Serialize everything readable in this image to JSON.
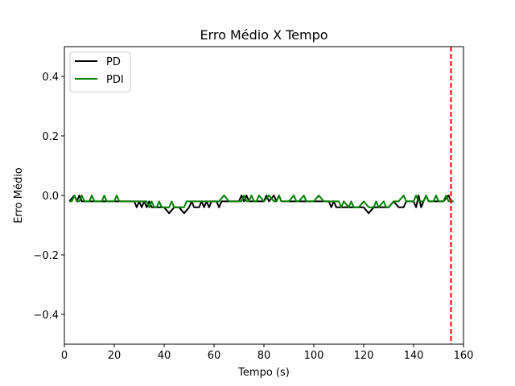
{
  "chart_data": {
    "type": "line",
    "title": "Erro Médio X Tempo",
    "xlabel": "Tempo (s)",
    "ylabel": "Erro Médio",
    "xlim": [
      0,
      160
    ],
    "ylim": [
      -0.5,
      0.5
    ],
    "xticks": [
      0,
      20,
      40,
      60,
      80,
      100,
      120,
      140,
      160
    ],
    "yticks": [
      0.4,
      0.2,
      0.0,
      -0.2,
      -0.4
    ],
    "ytick_labels": [
      "0.4",
      "0.2",
      "0.0",
      "−0.2",
      "−0.4"
    ],
    "grid": false,
    "legend_position": "top-left",
    "vline": {
      "x": 155,
      "color": "#ff0000",
      "style": "dashed"
    },
    "series": [
      {
        "name": "PD",
        "color": "#000000",
        "x": [
          2,
          4,
          5,
          6,
          7,
          9,
          11,
          13,
          15,
          16,
          17,
          19,
          21,
          23,
          25,
          27,
          28,
          29,
          30,
          31,
          32,
          33,
          34,
          35,
          36,
          37,
          38,
          40,
          42,
          44,
          46,
          48,
          50,
          51,
          52,
          53,
          54,
          55,
          56,
          57,
          58,
          59,
          61,
          62,
          63,
          64,
          66,
          68,
          70,
          71,
          72,
          73,
          74,
          76,
          78,
          80,
          81,
          82,
          84,
          85,
          86,
          87,
          88,
          90,
          92,
          94,
          96,
          98,
          100,
          102,
          104,
          106,
          107,
          108,
          109,
          110,
          112,
          114,
          116,
          118,
          120,
          122,
          124,
          126,
          128,
          130,
          132,
          134,
          136,
          137,
          138,
          140,
          141,
          142,
          143,
          144,
          145,
          146,
          147,
          148,
          150,
          152,
          154,
          155,
          156
        ],
        "y": [
          -0.02,
          0.0,
          -0.02,
          0.0,
          -0.02,
          -0.02,
          -0.02,
          -0.02,
          -0.02,
          -0.02,
          -0.02,
          -0.02,
          -0.02,
          -0.02,
          -0.02,
          -0.02,
          -0.02,
          -0.04,
          -0.02,
          -0.04,
          -0.02,
          -0.04,
          -0.02,
          -0.04,
          -0.04,
          -0.04,
          -0.04,
          -0.04,
          -0.06,
          -0.04,
          -0.04,
          -0.06,
          -0.04,
          -0.02,
          -0.04,
          -0.04,
          -0.04,
          -0.02,
          -0.04,
          -0.02,
          -0.04,
          -0.02,
          -0.02,
          -0.04,
          -0.02,
          -0.02,
          -0.02,
          -0.02,
          -0.02,
          0.0,
          -0.02,
          0.0,
          -0.02,
          -0.02,
          -0.02,
          -0.02,
          0.0,
          -0.02,
          0.0,
          -0.02,
          0.0,
          -0.02,
          -0.02,
          -0.02,
          -0.02,
          -0.02,
          -0.02,
          -0.02,
          -0.02,
          -0.02,
          -0.02,
          -0.02,
          -0.04,
          -0.02,
          -0.04,
          -0.04,
          -0.04,
          -0.04,
          -0.04,
          -0.04,
          -0.04,
          -0.06,
          -0.04,
          -0.04,
          -0.04,
          -0.04,
          -0.02,
          -0.04,
          -0.04,
          -0.02,
          -0.02,
          -0.02,
          -0.04,
          0.0,
          -0.04,
          -0.02,
          0.0,
          -0.02,
          -0.02,
          -0.02,
          -0.02,
          -0.02,
          0.0,
          -0.02,
          -0.02
        ]
      },
      {
        "name": "PDI",
        "color": "#008000",
        "x": [
          2,
          3,
          4,
          5,
          6,
          7,
          8,
          10,
          11,
          12,
          14,
          15,
          16,
          17,
          18,
          19,
          20,
          21,
          22,
          24,
          26,
          28,
          30,
          32,
          33,
          34,
          35,
          36,
          37,
          38,
          39,
          40,
          42,
          43,
          44,
          46,
          48,
          49,
          50,
          52,
          54,
          56,
          58,
          60,
          62,
          64,
          66,
          68,
          70,
          71,
          72,
          73,
          74,
          75,
          76,
          77,
          78,
          80,
          82,
          84,
          85,
          86,
          87,
          88,
          90,
          92,
          93,
          94,
          96,
          97,
          98,
          100,
          102,
          104,
          106,
          108,
          110,
          111,
          112,
          114,
          115,
          116,
          118,
          120,
          122,
          124,
          125,
          126,
          128,
          129,
          130,
          132,
          134,
          136,
          137,
          138,
          140,
          141,
          142,
          144,
          145,
          146,
          148,
          149,
          150,
          152,
          153,
          154,
          156
        ],
        "y": [
          -0.02,
          -0.02,
          0.0,
          -0.02,
          -0.02,
          0.0,
          -0.02,
          -0.02,
          0.0,
          -0.02,
          -0.02,
          -0.02,
          0.0,
          -0.02,
          -0.02,
          -0.02,
          -0.02,
          0.0,
          -0.02,
          -0.02,
          -0.02,
          -0.02,
          -0.02,
          -0.02,
          -0.02,
          -0.04,
          -0.02,
          -0.04,
          -0.04,
          -0.02,
          -0.04,
          -0.04,
          -0.04,
          -0.02,
          -0.04,
          -0.04,
          -0.04,
          -0.02,
          -0.02,
          -0.02,
          -0.02,
          -0.02,
          -0.02,
          -0.02,
          -0.02,
          0.0,
          -0.02,
          -0.02,
          -0.02,
          -0.02,
          0.0,
          -0.02,
          -0.02,
          0.0,
          -0.02,
          -0.02,
          0.0,
          -0.02,
          0.0,
          -0.02,
          -0.02,
          0.0,
          -0.02,
          -0.02,
          -0.02,
          0.0,
          -0.02,
          -0.02,
          0.0,
          -0.02,
          -0.02,
          -0.02,
          0.0,
          -0.02,
          -0.02,
          -0.02,
          -0.02,
          -0.04,
          -0.02,
          -0.04,
          -0.02,
          -0.04,
          -0.04,
          -0.02,
          -0.04,
          -0.04,
          -0.02,
          -0.04,
          -0.02,
          -0.04,
          -0.04,
          -0.02,
          -0.02,
          0.0,
          -0.02,
          -0.02,
          -0.02,
          0.0,
          -0.02,
          -0.02,
          0.0,
          -0.02,
          -0.02,
          0.0,
          -0.02,
          -0.02,
          0.0,
          -0.02,
          -0.02
        ]
      }
    ]
  }
}
